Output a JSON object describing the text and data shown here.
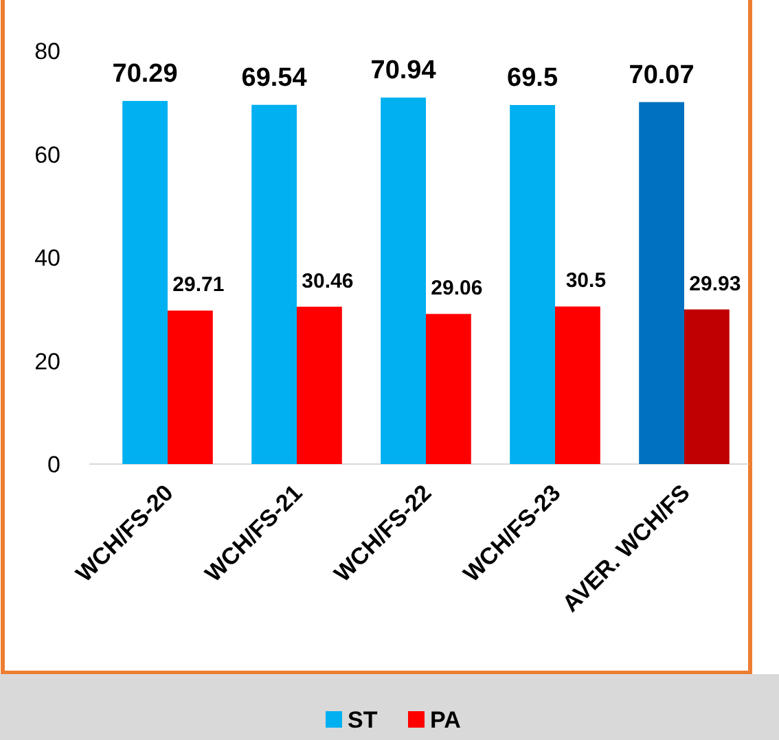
{
  "chart_data": {
    "type": "bar",
    "categories": [
      "WCH/FS-20",
      "WCH/FS-21",
      "WCH/FS-22",
      "WCH/FS-23",
      "AVER. WCH/FS"
    ],
    "series": [
      {
        "name": "ST",
        "color": "#00b0f0",
        "colors": [
          "#00b0f0",
          "#00b0f0",
          "#00b0f0",
          "#00b0f0",
          "#0070c0"
        ],
        "values": [
          70.29,
          69.54,
          70.94,
          69.5,
          70.07
        ]
      },
      {
        "name": "PA",
        "color": "#ff0000",
        "colors": [
          "#ff0000",
          "#ff0000",
          "#ff0000",
          "#ff0000",
          "#c00000"
        ],
        "values": [
          29.71,
          30.46,
          29.06,
          30.5,
          29.93
        ]
      }
    ],
    "ylim": [
      0,
      80
    ],
    "yticks": [
      0,
      20,
      40,
      60,
      80
    ],
    "data_labels": true,
    "legend": "bottom"
  }
}
